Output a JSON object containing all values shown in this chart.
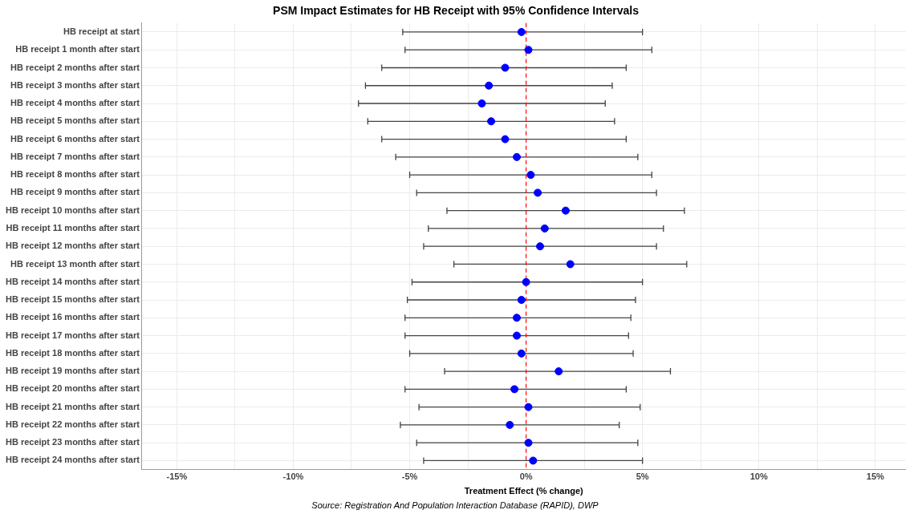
{
  "chart_data": {
    "type": "scatter",
    "orientation": "horizontal",
    "title": "PSM Impact Estimates for HB Receipt with 95% Confidence Intervals",
    "xlabel": "Treatment Effect (% change)",
    "annotations": [
      "Source: Registration And Population Interaction Database (RAPID), DWP"
    ],
    "categories": [
      "HB receipt at start",
      "HB receipt 1 month after start",
      "HB receipt 2 months after start",
      "HB receipt 3 months after start",
      "HB receipt 4 months after start",
      "HB receipt 5 months after start",
      "HB receipt 6 months after start",
      "HB receipt 7 months after start",
      "HB receipt 8 months after start",
      "HB receipt 9 months after start",
      "HB receipt 10 months after start",
      "HB receipt 11 months after start",
      "HB receipt 12 months after start",
      "HB receipt 13 month after start",
      "HB receipt 14 months after start",
      "HB receipt 15 months after start",
      "HB receipt 16 months after start",
      "HB receipt 17 months after start",
      "HB receipt 18 months after start",
      "HB receipt 19 months after start",
      "HB receipt 20 months after start",
      "HB receipt 21 months after start",
      "HB receipt 22 months after start",
      "HB receipt 23 months after start",
      "HB receipt 24 months after start"
    ],
    "values": [
      -0.2,
      0.1,
      -0.9,
      -1.6,
      -1.9,
      -1.5,
      -0.9,
      -0.4,
      0.2,
      0.5,
      1.7,
      0.8,
      0.6,
      1.9,
      0.0,
      -0.2,
      -0.4,
      -0.4,
      -0.2,
      1.4,
      -0.5,
      0.1,
      -0.7,
      0.1,
      0.3
    ],
    "errors": [
      [
        -5.3,
        5.0
      ],
      [
        -5.2,
        5.4
      ],
      [
        -6.2,
        4.3
      ],
      [
        -6.9,
        3.7
      ],
      [
        -7.2,
        3.4
      ],
      [
        -6.8,
        3.8
      ],
      [
        -6.2,
        4.3
      ],
      [
        -5.6,
        4.8
      ],
      [
        -5.0,
        5.4
      ],
      [
        -4.7,
        5.6
      ],
      [
        -3.4,
        6.8
      ],
      [
        -4.2,
        5.9
      ],
      [
        -4.4,
        5.6
      ],
      [
        -3.1,
        6.9
      ],
      [
        -4.9,
        5.0
      ],
      [
        -5.1,
        4.7
      ],
      [
        -5.2,
        4.5
      ],
      [
        -5.2,
        4.4
      ],
      [
        -5.0,
        4.6
      ],
      [
        -3.5,
        6.2
      ],
      [
        -5.2,
        4.3
      ],
      [
        -4.6,
        4.9
      ],
      [
        -5.4,
        4.0
      ],
      [
        -4.7,
        4.8
      ],
      [
        -4.4,
        5.0
      ]
    ],
    "color": "#0000ff",
    "xlim": [
      -16.5,
      16.3
    ],
    "xticks": [
      {
        "value": -15,
        "label": "-15%"
      },
      {
        "value": -12.5,
        "label": null
      },
      {
        "value": -10,
        "label": "-10%"
      },
      {
        "value": -7.5,
        "label": null
      },
      {
        "value": -5,
        "label": "-5%"
      },
      {
        "value": -2.5,
        "label": null
      },
      {
        "value": 0,
        "label": "0%"
      },
      {
        "value": 2.5,
        "label": null
      },
      {
        "value": 5,
        "label": "5%"
      },
      {
        "value": 7.5,
        "label": null
      },
      {
        "value": 10,
        "label": "10%"
      },
      {
        "value": 12.5,
        "label": null
      },
      {
        "value": 15,
        "label": "15%"
      }
    ],
    "ref_lines": [
      {
        "axis": "x",
        "value": 0,
        "color": "#ff0000",
        "line_style": "dashed"
      }
    ],
    "grid": true,
    "legend": false,
    "marker": "circle"
  }
}
